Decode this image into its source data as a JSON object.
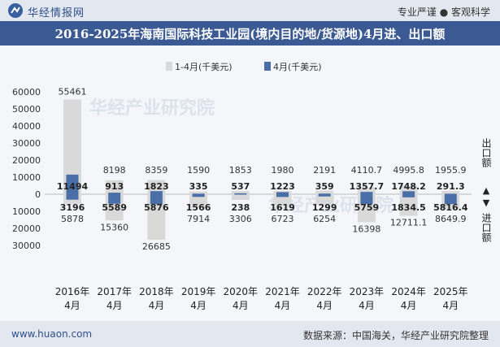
{
  "header": {
    "site_name": "华经情报网",
    "slogan": "专业严谨 ● 客观科学"
  },
  "footer": {
    "website": "www.huaon.com",
    "source": "数据来源：中国海关，华经产业研究院整理"
  },
  "watermark": "华经产业研究院",
  "colors": {
    "cumulative": "#d9d9d9",
    "monthly": "#4a6fa8",
    "title_bg": "#3b5a94"
  },
  "chart_data": {
    "type": "bar",
    "title": "2016-2025年海南国际科技工业园(境内目的地/货源地)4月进、出口额",
    "categories": [
      "2016年\n4月",
      "2017年\n4月",
      "2018年\n4月",
      "2019年\n4月",
      "2020年\n4月",
      "2021年\n4月",
      "2022年\n4月",
      "2023年\n4月",
      "2024年\n4月",
      "2025年\n4月"
    ],
    "series": [
      {
        "name": "1-4月(千美元)",
        "export": [
          55461,
          8198,
          8359,
          1590,
          1853,
          1980,
          2191,
          4110.7,
          4995.8,
          1955.9
        ],
        "import": [
          5878,
          15360,
          26685,
          7914,
          3306,
          6723,
          6254,
          16398,
          12711.1,
          8649.9
        ],
        "export_labels": [
          "55461",
          "8198",
          "8359",
          "1590",
          "1853",
          "1980",
          "2191",
          "4110.7",
          "4995.8",
          "1955.9"
        ],
        "import_labels": [
          "5878",
          "15360",
          "26685",
          "7914",
          "3306",
          "6723",
          "6254",
          "16398",
          "12711.1",
          "8649.9"
        ]
      },
      {
        "name": "4月(千美元)",
        "export": [
          11494,
          913,
          1823,
          335,
          537,
          1223,
          359,
          1357.7,
          1748.2,
          291.3
        ],
        "import": [
          3196,
          5589,
          5876,
          1566,
          238,
          1619,
          1299,
          5759,
          1834.5,
          5816.4
        ],
        "export_labels": [
          "11494",
          "913",
          "1823",
          "335",
          "537",
          "1223",
          "359",
          "1357.7",
          "1748.2",
          "291.3"
        ],
        "import_labels": [
          "3196",
          "5589",
          "5876",
          "1566",
          "238",
          "1619",
          "1299",
          "5759",
          "1834.5",
          "5816.4"
        ]
      }
    ],
    "ylim": [
      -30000,
      60000
    ],
    "yticks": [
      60000,
      50000,
      40000,
      30000,
      20000,
      10000,
      0,
      -10000,
      -20000,
      -30000
    ],
    "ytick_labels": [
      "60000",
      "50000",
      "40000",
      "30000",
      "20000",
      "10000",
      "0",
      "10000",
      "20000",
      "30000"
    ],
    "right_label_export": "出口额",
    "right_label_import": "进口额",
    "arrow_up": "▲",
    "arrow_down": "▼",
    "legend_position": "top-center"
  }
}
